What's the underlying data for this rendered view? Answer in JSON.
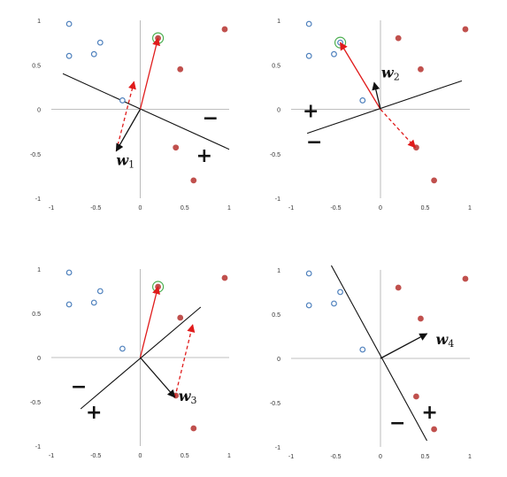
{
  "colors": {
    "positive": "#c0504d",
    "negative": "#4f81bd",
    "highlight": "#4caf50",
    "update_arrow": "#e01b1b",
    "weight_arrow": "#111111",
    "axis": "#aaaaaa",
    "boundary": "#111111"
  },
  "chart_data": [
    {
      "type": "scatter",
      "panel": "top-left",
      "xlim": [
        -1,
        1
      ],
      "ylim": [
        -1,
        1
      ],
      "xticks": [
        "-1",
        "-0.5",
        "0",
        "0.5",
        "1"
      ],
      "yticks": [
        "1",
        "0.5",
        "0",
        "-0.5",
        "-1"
      ],
      "grid": false,
      "series": [
        {
          "class": "positive",
          "marker": "filled-circle",
          "points": [
            [
              0.2,
              0.8
            ],
            [
              0.95,
              0.9
            ],
            [
              0.45,
              0.45
            ],
            [
              0.4,
              -0.43
            ],
            [
              0.6,
              -0.8
            ]
          ]
        },
        {
          "class": "negative",
          "marker": "open-circle",
          "points": [
            [
              -0.8,
              0.96
            ],
            [
              -0.45,
              0.75
            ],
            [
              -0.52,
              0.62
            ],
            [
              -0.8,
              0.6
            ],
            [
              -0.2,
              0.1
            ]
          ]
        }
      ],
      "highlighted_point": [
        0.2,
        0.8
      ],
      "boundary": [
        [
          -0.87,
          0.4
        ],
        [
          1.0,
          -0.45
        ]
      ],
      "weight_vector": {
        "from": [
          0,
          0
        ],
        "to": [
          -0.27,
          -0.47
        ],
        "label": "w",
        "subscript": "1"
      },
      "update_vectors": [
        {
          "from": [
            0,
            0
          ],
          "to": [
            0.2,
            0.8
          ],
          "style": "solid"
        },
        {
          "from": [
            -0.27,
            -0.47
          ],
          "to": [
            -0.07,
            0.31
          ],
          "style": "dashed"
        }
      ],
      "signs": [
        {
          "text": "−",
          "at": [
            0.79,
            -0.1
          ]
        },
        {
          "text": "+",
          "at": [
            0.72,
            -0.52
          ]
        }
      ]
    },
    {
      "type": "scatter",
      "panel": "top-right",
      "xlim": [
        -1,
        1
      ],
      "ylim": [
        -1,
        1
      ],
      "xticks": [
        "-1",
        "-0.5",
        "0",
        "0.5",
        "1"
      ],
      "yticks": [
        "1",
        "0.5",
        "0",
        "-0.5",
        "-1"
      ],
      "grid": false,
      "series": [
        {
          "class": "positive",
          "marker": "filled-circle",
          "points": [
            [
              0.2,
              0.8
            ],
            [
              0.95,
              0.9
            ],
            [
              0.45,
              0.45
            ],
            [
              0.4,
              -0.43
            ],
            [
              0.6,
              -0.8
            ]
          ]
        },
        {
          "class": "negative",
          "marker": "open-circle",
          "points": [
            [
              -0.8,
              0.96
            ],
            [
              -0.45,
              0.75
            ],
            [
              -0.52,
              0.62
            ],
            [
              -0.8,
              0.6
            ],
            [
              -0.2,
              0.1
            ]
          ]
        }
      ],
      "highlighted_point": [
        -0.45,
        0.75
      ],
      "boundary": [
        [
          -0.82,
          -0.27
        ],
        [
          0.91,
          0.32
        ]
      ],
      "weight_vector": {
        "from": [
          0,
          0
        ],
        "to": [
          -0.07,
          0.3
        ],
        "label": "w",
        "subscript": "2"
      },
      "update_vectors": [
        {
          "from": [
            0,
            0
          ],
          "to": [
            -0.45,
            0.75
          ],
          "style": "solid"
        },
        {
          "from": [
            0,
            0
          ],
          "to": [
            0.39,
            -0.43
          ],
          "style": "dashed"
        }
      ],
      "signs": [
        {
          "text": "+",
          "at": [
            -0.78,
            -0.02
          ]
        },
        {
          "text": "−",
          "at": [
            -0.74,
            -0.37
          ]
        }
      ]
    },
    {
      "type": "scatter",
      "panel": "bottom-left",
      "xlim": [
        -1,
        1
      ],
      "ylim": [
        -1,
        1
      ],
      "xticks": [
        "-1",
        "-0.5",
        "0",
        "0.5",
        "1"
      ],
      "yticks": [
        "1",
        "0.5",
        "0",
        "-0.5",
        "-1"
      ],
      "grid": false,
      "series": [
        {
          "class": "positive",
          "marker": "filled-circle",
          "points": [
            [
              0.2,
              0.8
            ],
            [
              0.95,
              0.9
            ],
            [
              0.45,
              0.45
            ],
            [
              0.4,
              -0.43
            ],
            [
              0.6,
              -0.8
            ]
          ]
        },
        {
          "class": "negative",
          "marker": "open-circle",
          "points": [
            [
              -0.8,
              0.96
            ],
            [
              -0.45,
              0.75
            ],
            [
              -0.52,
              0.62
            ],
            [
              -0.8,
              0.6
            ],
            [
              -0.2,
              0.1
            ]
          ]
        }
      ],
      "highlighted_point": [
        0.2,
        0.8
      ],
      "boundary": [
        [
          -0.67,
          -0.58
        ],
        [
          0.68,
          0.57
        ]
      ],
      "weight_vector": {
        "from": [
          0,
          0
        ],
        "to": [
          0.39,
          -0.45
        ],
        "label": "w",
        "subscript": "3"
      },
      "update_vectors": [
        {
          "from": [
            0,
            0
          ],
          "to": [
            0.2,
            0.8
          ],
          "style": "solid"
        },
        {
          "from": [
            0.39,
            -0.45
          ],
          "to": [
            0.59,
            0.37
          ],
          "style": "dashed"
        }
      ],
      "signs": [
        {
          "text": "−",
          "at": [
            -0.69,
            -0.33
          ]
        },
        {
          "text": "+",
          "at": [
            -0.52,
            -0.62
          ]
        }
      ]
    },
    {
      "type": "scatter",
      "panel": "bottom-right",
      "xlim": [
        -1,
        1
      ],
      "ylim": [
        -1,
        1
      ],
      "xticks": [
        "-1",
        "-0.5",
        "0",
        "0.5",
        "1"
      ],
      "yticks": [
        "1",
        "0.5",
        "0",
        "-0.5",
        "-1"
      ],
      "grid": false,
      "series": [
        {
          "class": "positive",
          "marker": "filled-circle",
          "points": [
            [
              0.2,
              0.8
            ],
            [
              0.95,
              0.9
            ],
            [
              0.45,
              0.45
            ],
            [
              0.4,
              -0.43
            ],
            [
              0.6,
              -0.8
            ]
          ]
        },
        {
          "class": "negative",
          "marker": "open-circle",
          "points": [
            [
              -0.8,
              0.96
            ],
            [
              -0.45,
              0.75
            ],
            [
              -0.52,
              0.62
            ],
            [
              -0.8,
              0.6
            ],
            [
              -0.2,
              0.1
            ]
          ]
        }
      ],
      "highlighted_point": null,
      "boundary": [
        [
          -0.55,
          1.05
        ],
        [
          0.52,
          -0.93
        ]
      ],
      "weight_vector": {
        "from": [
          0,
          0
        ],
        "to": [
          0.52,
          0.28
        ],
        "label": "w",
        "subscript": "4"
      },
      "update_vectors": [],
      "signs": [
        {
          "text": "−",
          "at": [
            0.19,
            -0.73
          ]
        },
        {
          "text": "+",
          "at": [
            0.55,
            -0.61
          ]
        }
      ]
    }
  ]
}
